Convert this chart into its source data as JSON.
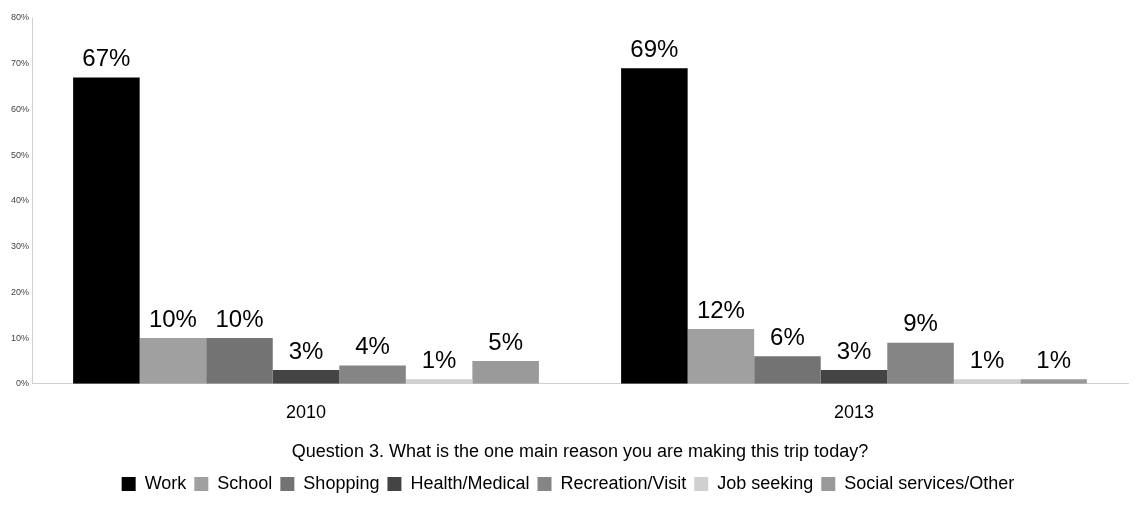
{
  "chart_data": {
    "type": "bar",
    "xlabel": "Question 3. What is the one main reason you are making this trip today?",
    "categories": [
      "2010",
      "2013"
    ],
    "ylim": [
      0,
      80
    ],
    "yticks": [
      {
        "value": 0,
        "label": "0%"
      },
      {
        "value": 10,
        "label": "10%"
      },
      {
        "value": 20,
        "label": "20%"
      },
      {
        "value": 30,
        "label": "30%"
      },
      {
        "value": 40,
        "label": "40%"
      },
      {
        "value": 50,
        "label": "50%"
      },
      {
        "value": 60,
        "label": "60%"
      },
      {
        "value": 70,
        "label": "70%"
      },
      {
        "value": 80,
        "label": "80%"
      }
    ],
    "grid": false,
    "legend": "bottom",
    "series": [
      {
        "name": "Work",
        "color": "#000000",
        "values": [
          67,
          69
        ],
        "value_labels": [
          "67%",
          "69%"
        ]
      },
      {
        "name": "School",
        "color": "#a0a0a0",
        "values": [
          10,
          12
        ],
        "value_labels": [
          "10%",
          "12%"
        ]
      },
      {
        "name": "Shopping",
        "color": "#737373",
        "values": [
          10,
          6
        ],
        "value_labels": [
          "10%",
          "6%"
        ]
      },
      {
        "name": "Health/Medical",
        "color": "#444444",
        "values": [
          3,
          3
        ],
        "value_labels": [
          "3%",
          "3%"
        ]
      },
      {
        "name": "Recreation/Visit",
        "color": "#858585",
        "values": [
          4,
          9
        ],
        "value_labels": [
          "4%",
          "9%"
        ]
      },
      {
        "name": "Job seeking",
        "color": "#d0d0d0",
        "values": [
          1,
          1
        ],
        "value_labels": [
          "1%",
          "1%"
        ]
      },
      {
        "name": "Social services/Other",
        "color": "#9a9a9a",
        "values": [
          5,
          1
        ],
        "value_labels": [
          "5%",
          "1%"
        ]
      }
    ]
  }
}
